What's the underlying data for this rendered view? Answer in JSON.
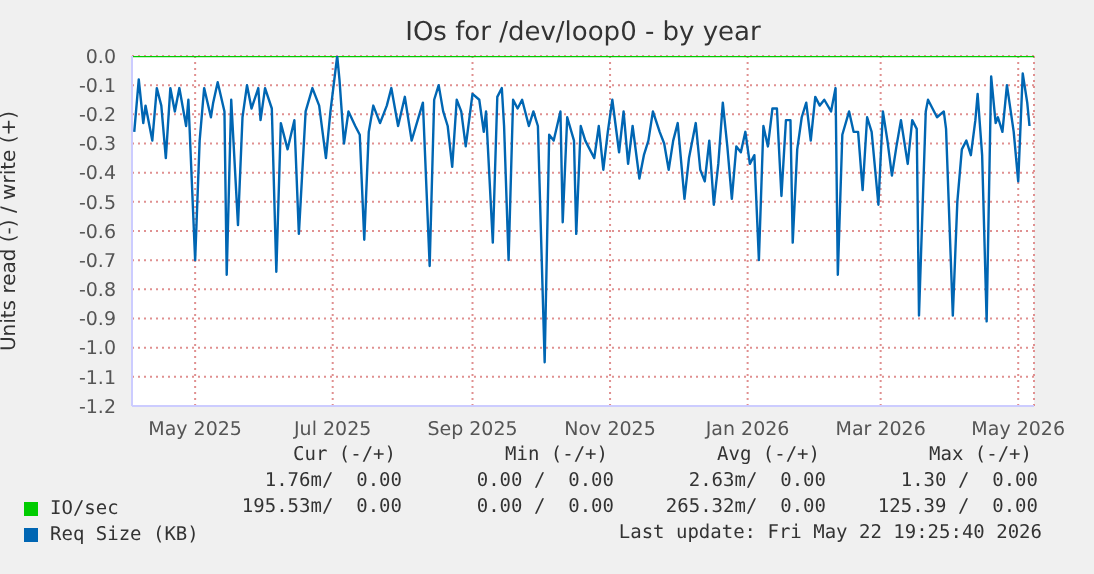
{
  "chart_data": {
    "type": "line",
    "title": "IOs for /dev/loop0 - by year",
    "ylabel": "Units read (-) / write (+)",
    "xlim": [
      "2025-04-17",
      "2026-05-22"
    ],
    "xticks": [
      {
        "value": "2025-05-15",
        "label": "May 2025"
      },
      {
        "value": "2025-07-15",
        "label": "Jul 2025"
      },
      {
        "value": "2025-09-15",
        "label": "Sep 2025"
      },
      {
        "value": "2025-11-15",
        "label": "Nov 2025"
      },
      {
        "value": "2026-01-15",
        "label": "Jan 2026"
      },
      {
        "value": "2026-03-15",
        "label": "Mar 2026"
      },
      {
        "value": "2026-05-15",
        "label": "May 2026"
      }
    ],
    "ylim": [
      -1.2,
      0
    ],
    "yticks": [
      {
        "value": -1.2,
        "label": "-1.2"
      },
      {
        "value": -1.1,
        "label": "-1.1"
      },
      {
        "value": -1,
        "label": "-1.0"
      },
      {
        "value": -0.9,
        "label": "-0.9"
      },
      {
        "value": -0.8,
        "label": "-0.8"
      },
      {
        "value": -0.7,
        "label": "-0.7"
      },
      {
        "value": -0.6,
        "label": "-0.6"
      },
      {
        "value": -0.5,
        "label": "-0.5"
      },
      {
        "value": -0.4,
        "label": "-0.4"
      },
      {
        "value": -0.3,
        "label": "-0.3"
      },
      {
        "value": -0.2,
        "label": "-0.2"
      },
      {
        "value": -0.1,
        "label": "-0.1"
      },
      {
        "value": 0,
        "label": "0.0"
      }
    ],
    "grid": true,
    "legend": "bottom",
    "marker": "none",
    "line_style": "solid",
    "series": [
      {
        "name": "IO/sec",
        "color": "#00cc00",
        "x": [
          "2025-04-17",
          "2026-05-22"
        ],
        "values": [
          0,
          0
        ]
      },
      {
        "name": "Req Size (KB)",
        "color": "#0066b3",
        "x": [
          "2025-04-18",
          "2025-04-20",
          "2025-04-22",
          "2025-04-23",
          "2025-04-26",
          "2025-04-28",
          "2025-04-30",
          "2025-05-02",
          "2025-05-04",
          "2025-05-06",
          "2025-05-08",
          "2025-05-11",
          "2025-05-12",
          "2025-05-15",
          "2025-05-17",
          "2025-05-19",
          "2025-05-22",
          "2025-05-23",
          "2025-05-25",
          "2025-05-28",
          "2025-05-29",
          "2025-05-31",
          "2025-06-03",
          "2025-06-05",
          "2025-06-07",
          "2025-06-09",
          "2025-06-12",
          "2025-06-13",
          "2025-06-15",
          "2025-06-18",
          "2025-06-20",
          "2025-06-22",
          "2025-06-25",
          "2025-06-28",
          "2025-06-30",
          "2025-07-03",
          "2025-07-06",
          "2025-07-09",
          "2025-07-12",
          "2025-07-14",
          "2025-07-17",
          "2025-07-18",
          "2025-07-20",
          "2025-07-22",
          "2025-07-25",
          "2025-07-27",
          "2025-07-29",
          "2025-07-31",
          "2025-08-02",
          "2025-08-05",
          "2025-08-08",
          "2025-08-10",
          "2025-08-13",
          "2025-08-16",
          "2025-08-19",
          "2025-08-24",
          "2025-08-27",
          "2025-08-29",
          "2025-08-31",
          "2025-09-02",
          "2025-09-04",
          "2025-09-06",
          "2025-09-08",
          "2025-09-10",
          "2025-09-12",
          "2025-09-15",
          "2025-09-18",
          "2025-09-20",
          "2025-09-21",
          "2025-09-24",
          "2025-09-26",
          "2025-09-28",
          "2025-09-29",
          "2025-10-01",
          "2025-10-03",
          "2025-10-05",
          "2025-10-07",
          "2025-10-10",
          "2025-10-12",
          "2025-10-14",
          "2025-10-17",
          "2025-10-19",
          "2025-10-21",
          "2025-10-24",
          "2025-10-25",
          "2025-10-27",
          "2025-10-30",
          "2025-10-31",
          "2025-11-02",
          "2025-11-04",
          "2025-11-06",
          "2025-11-08",
          "2025-11-10",
          "2025-11-12",
          "2025-11-14",
          "2025-11-16",
          "2025-11-19",
          "2025-11-21",
          "2025-11-23",
          "2025-11-25",
          "2025-11-28",
          "2025-11-30",
          "2025-12-02",
          "2025-12-04",
          "2025-12-07",
          "2025-12-09",
          "2025-12-11",
          "2025-12-13",
          "2025-12-15",
          "2025-12-18",
          "2025-12-20",
          "2025-12-23",
          "2025-12-25",
          "2025-12-27",
          "2025-12-29",
          "2025-12-31",
          "2026-01-02",
          "2026-01-04",
          "2026-01-06",
          "2026-01-08",
          "2026-01-10",
          "2026-01-12",
          "2026-01-14",
          "2026-01-16",
          "2026-01-18",
          "2026-01-20",
          "2026-01-22",
          "2026-01-24",
          "2026-01-26",
          "2026-01-28",
          "2026-01-30",
          "2026-02-01",
          "2026-02-03",
          "2026-02-04",
          "2026-02-06",
          "2026-02-08",
          "2026-02-10",
          "2026-02-12",
          "2026-02-14",
          "2026-02-16",
          "2026-02-18",
          "2026-02-21",
          "2026-02-23",
          "2026-02-24",
          "2026-02-26",
          "2026-03-01",
          "2026-03-03",
          "2026-03-05",
          "2026-03-07",
          "2026-03-09",
          "2026-03-11",
          "2026-03-14",
          "2026-03-16",
          "2026-03-18",
          "2026-03-20",
          "2026-03-22",
          "2026-03-24",
          "2026-03-27",
          "2026-03-29",
          "2026-03-31",
          "2026-04-01",
          "2026-04-04",
          "2026-04-05",
          "2026-04-07",
          "2026-04-09",
          "2026-04-12",
          "2026-04-13",
          "2026-04-16",
          "2026-04-18",
          "2026-04-20",
          "2026-04-22",
          "2026-04-24",
          "2026-04-26",
          "2026-04-27",
          "2026-04-29",
          "2026-05-01",
          "2026-05-03",
          "2026-05-05",
          "2026-05-06",
          "2026-05-08",
          "2026-05-10",
          "2026-05-13",
          "2026-05-15",
          "2026-05-17",
          "2026-05-19",
          "2026-05-20"
        ],
        "values": [
          -0.26,
          -0.08,
          -0.23,
          -0.17,
          -0.29,
          -0.11,
          -0.17,
          -0.35,
          -0.11,
          -0.19,
          -0.11,
          -0.24,
          -0.15,
          -0.7,
          -0.29,
          -0.11,
          -0.21,
          -0.16,
          -0.09,
          -0.19,
          -0.75,
          -0.15,
          -0.58,
          -0.21,
          -0.1,
          -0.18,
          -0.11,
          -0.22,
          -0.11,
          -0.18,
          -0.74,
          -0.23,
          -0.32,
          -0.22,
          -0.61,
          -0.19,
          -0.11,
          -0.17,
          -0.35,
          -0.19,
          0,
          -0.08,
          -0.3,
          -0.19,
          -0.24,
          -0.27,
          -0.63,
          -0.26,
          -0.17,
          -0.23,
          -0.17,
          -0.11,
          -0.24,
          -0.14,
          -0.29,
          -0.16,
          -0.72,
          -0.15,
          -0.1,
          -0.19,
          -0.24,
          -0.38,
          -0.15,
          -0.19,
          -0.31,
          -0.13,
          -0.15,
          -0.26,
          -0.19,
          -0.64,
          -0.14,
          -0.11,
          -0.24,
          -0.7,
          -0.15,
          -0.18,
          -0.15,
          -0.24,
          -0.19,
          -0.24,
          -1.05,
          -0.27,
          -0.29,
          -0.19,
          -0.57,
          -0.21,
          -0.29,
          -0.61,
          -0.24,
          -0.29,
          -0.32,
          -0.35,
          -0.24,
          -0.39,
          -0.26,
          -0.15,
          -0.33,
          -0.19,
          -0.37,
          -0.24,
          -0.42,
          -0.34,
          -0.29,
          -0.19,
          -0.26,
          -0.3,
          -0.39,
          -0.29,
          -0.23,
          -0.49,
          -0.35,
          -0.23,
          -0.39,
          -0.43,
          -0.29,
          -0.51,
          -0.37,
          -0.16,
          -0.31,
          -0.49,
          -0.31,
          -0.33,
          -0.26,
          -0.37,
          -0.34,
          -0.7,
          -0.24,
          -0.31,
          -0.18,
          -0.18,
          -0.48,
          -0.22,
          -0.22,
          -0.64,
          -0.32,
          -0.21,
          -0.16,
          -0.29,
          -0.14,
          -0.17,
          -0.15,
          -0.19,
          -0.11,
          -0.75,
          -0.27,
          -0.19,
          -0.26,
          -0.26,
          -0.46,
          -0.21,
          -0.26,
          -0.51,
          -0.19,
          -0.29,
          -0.41,
          -0.31,
          -0.22,
          -0.37,
          -0.22,
          -0.25,
          -0.89,
          -0.19,
          -0.15,
          -0.18,
          -0.21,
          -0.19,
          -0.25,
          -0.89,
          -0.5,
          -0.32,
          -0.29,
          -0.34,
          -0.22,
          -0.13,
          -0.34,
          -0.91,
          -0.07,
          -0.23,
          -0.21,
          -0.26,
          -0.1,
          -0.26,
          -0.43,
          -0.06,
          -0.16,
          -0.24
        ]
      }
    ],
    "annotations": [
      "Cur (-/+)",
      "Min (-/+)",
      "Avg (-/+)",
      "Max (-/+)",
      "1.76m/  0.00",
      "0.00 /  0.00",
      "2.63m/  0.00",
      "1.30 /  0.00",
      "195.53m/  0.00",
      "0.00 /  0.00",
      "265.32m/  0.00",
      "125.39 /  0.00",
      "Last update: Fri May 22 19:25:40 2026"
    ]
  }
}
